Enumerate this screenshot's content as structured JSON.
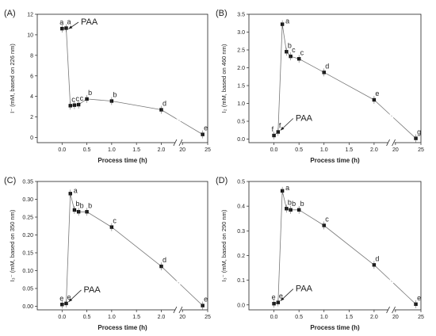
{
  "chart_data": [
    {
      "type": "line",
      "panel_label": "(A)",
      "ylabel": "I⁻ (mM, based on 226 nm)",
      "xlabel": "Process time (h)",
      "xlim": [
        -0.5,
        25
      ],
      "ylim": [
        -0.5,
        12
      ],
      "xticks": [
        "0.0",
        "0.5",
        "1.0",
        "1.5",
        "2.0",
        "20",
        "25"
      ],
      "yticks": [
        0,
        2,
        4,
        6,
        8,
        10,
        12
      ],
      "x": [
        0,
        0.083,
        0.167,
        0.25,
        0.333,
        0.5,
        1.0,
        2.0,
        24
      ],
      "values": [
        10.6,
        10.65,
        3.1,
        3.15,
        3.2,
        3.75,
        3.55,
        2.7,
        0.3
      ],
      "letters": [
        "a",
        "a",
        "c",
        "c",
        "c",
        "b",
        "b",
        "d",
        "e"
      ],
      "annotation": "PAA",
      "grid": false,
      "legend": "none"
    },
    {
      "type": "line",
      "panel_label": "(B)",
      "ylabel": "I₂ (mM, based on 460 nm)",
      "xlabel": "Process time (h)",
      "xlim": [
        -0.5,
        25
      ],
      "ylim": [
        -0.1,
        3.5
      ],
      "xticks": [
        "0.0",
        "0.5",
        "1.0",
        "1.5",
        "2.0",
        "20",
        "25"
      ],
      "yticks": [
        "0.0",
        "0.5",
        "1.0",
        "1.5",
        "2.0",
        "2.5",
        "3.0",
        "3.5"
      ],
      "x": [
        0,
        0.083,
        0.167,
        0.25,
        0.333,
        0.5,
        1.0,
        2.0,
        24
      ],
      "values": [
        0.1,
        0.2,
        3.22,
        2.45,
        2.32,
        2.25,
        1.87,
        1.1,
        0.02
      ],
      "letters": [
        "f",
        "f",
        "a",
        "b",
        "c",
        "c",
        "d",
        "e",
        "g"
      ],
      "annotation": "PAA",
      "grid": false,
      "legend": "none"
    },
    {
      "type": "line",
      "panel_label": "(C)",
      "ylabel": "I₃⁻ (mM, based on 350 nm)",
      "xlabel": "Process time (h)",
      "xlim": [
        -0.5,
        25
      ],
      "ylim": [
        -0.01,
        0.35
      ],
      "xticks": [
        "0.0",
        "0.5",
        "1.0",
        "1.5",
        "2.0",
        "20",
        "25"
      ],
      "yticks": [
        "0.00",
        "0.05",
        "0.10",
        "0.15",
        "0.20",
        "0.25",
        "0.30",
        "0.35"
      ],
      "x": [
        0,
        0.083,
        0.167,
        0.25,
        0.333,
        0.5,
        1.0,
        2.0,
        24
      ],
      "values": [
        0.005,
        0.008,
        0.316,
        0.27,
        0.265,
        0.265,
        0.222,
        0.112,
        0.002
      ],
      "letters": [
        "e",
        "e",
        "a",
        "b",
        "b",
        "b",
        "c",
        "d",
        "e"
      ],
      "annotation": "PAA",
      "grid": false,
      "legend": "none"
    },
    {
      "type": "line",
      "panel_label": "(D)",
      "ylabel": "I₃⁻ (mM, based on 290 nm)",
      "xlabel": "Process time (h)",
      "xlim": [
        -0.5,
        25
      ],
      "ylim": [
        -0.02,
        0.5
      ],
      "xticks": [
        "0.0",
        "0.5",
        "1.0",
        "1.5",
        "2.0",
        "20",
        "25"
      ],
      "yticks": [
        "0.0",
        "0.1",
        "0.2",
        "0.3",
        "0.4",
        "0.5"
      ],
      "x": [
        0,
        0.083,
        0.167,
        0.25,
        0.333,
        0.5,
        1.0,
        2.0,
        24
      ],
      "values": [
        0.005,
        0.01,
        0.462,
        0.39,
        0.385,
        0.385,
        0.322,
        0.162,
        0.003
      ],
      "letters": [
        "e",
        "e",
        "a",
        "b",
        "b",
        "b",
        "c",
        "d",
        "e"
      ],
      "annotation": "PAA",
      "grid": false,
      "legend": "none"
    }
  ]
}
